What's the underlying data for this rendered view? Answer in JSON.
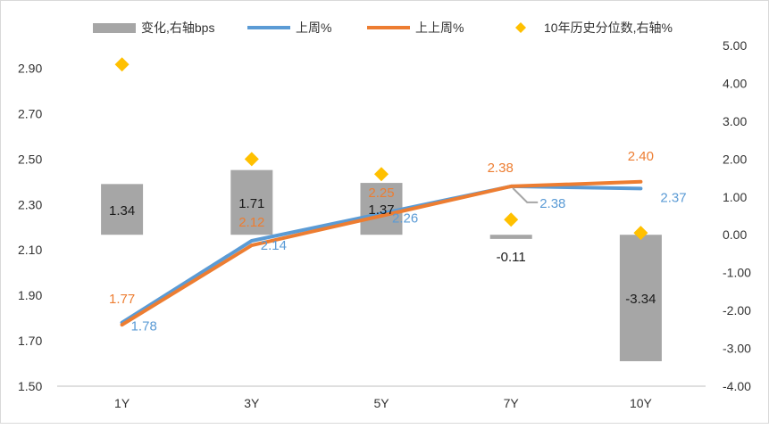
{
  "chart_data": {
    "type": "bar",
    "categories": [
      "1Y",
      "3Y",
      "5Y",
      "7Y",
      "10Y"
    ],
    "series": [
      {
        "name": "变化,右轴bps",
        "type": "bar",
        "axis": "right",
        "color": "#a6a6a6",
        "values": [
          1.34,
          1.71,
          1.37,
          -0.11,
          -3.34
        ],
        "labels": [
          "1.34",
          "1.71",
          "1.37",
          "-0.11",
          "-3.34"
        ]
      },
      {
        "name": "上周%",
        "type": "line",
        "axis": "left",
        "color": "#5b9bd5",
        "values": [
          1.78,
          2.14,
          2.26,
          2.38,
          2.37
        ],
        "labels": [
          "1.78",
          "2.14",
          "2.26",
          "2.38",
          "2.37"
        ]
      },
      {
        "name": "上上周%",
        "type": "line",
        "axis": "left",
        "color": "#ed7d31",
        "values": [
          1.77,
          2.12,
          2.25,
          2.38,
          2.4
        ],
        "labels": [
          "1.77",
          "2.12",
          "2.25",
          "2.38",
          "2.40"
        ]
      },
      {
        "name": "10年历史分位数,右轴%",
        "type": "scatter",
        "axis": "right",
        "color": "#ffc000",
        "values": [
          4.5,
          2.0,
          1.6,
          0.4,
          0.05
        ]
      }
    ],
    "left_axis": {
      "min": 1.5,
      "max": 3.0,
      "ticks": [
        "1.50",
        "1.70",
        "1.90",
        "2.10",
        "2.30",
        "2.50",
        "2.70",
        "2.90"
      ]
    },
    "right_axis": {
      "min": -4.0,
      "max": 5.0,
      "ticks": [
        "-4.00",
        "-3.00",
        "-2.00",
        "-1.00",
        "0.00",
        "1.00",
        "2.00",
        "3.00",
        "4.00",
        "5.00"
      ]
    },
    "legend_position": "top",
    "grid": false
  }
}
